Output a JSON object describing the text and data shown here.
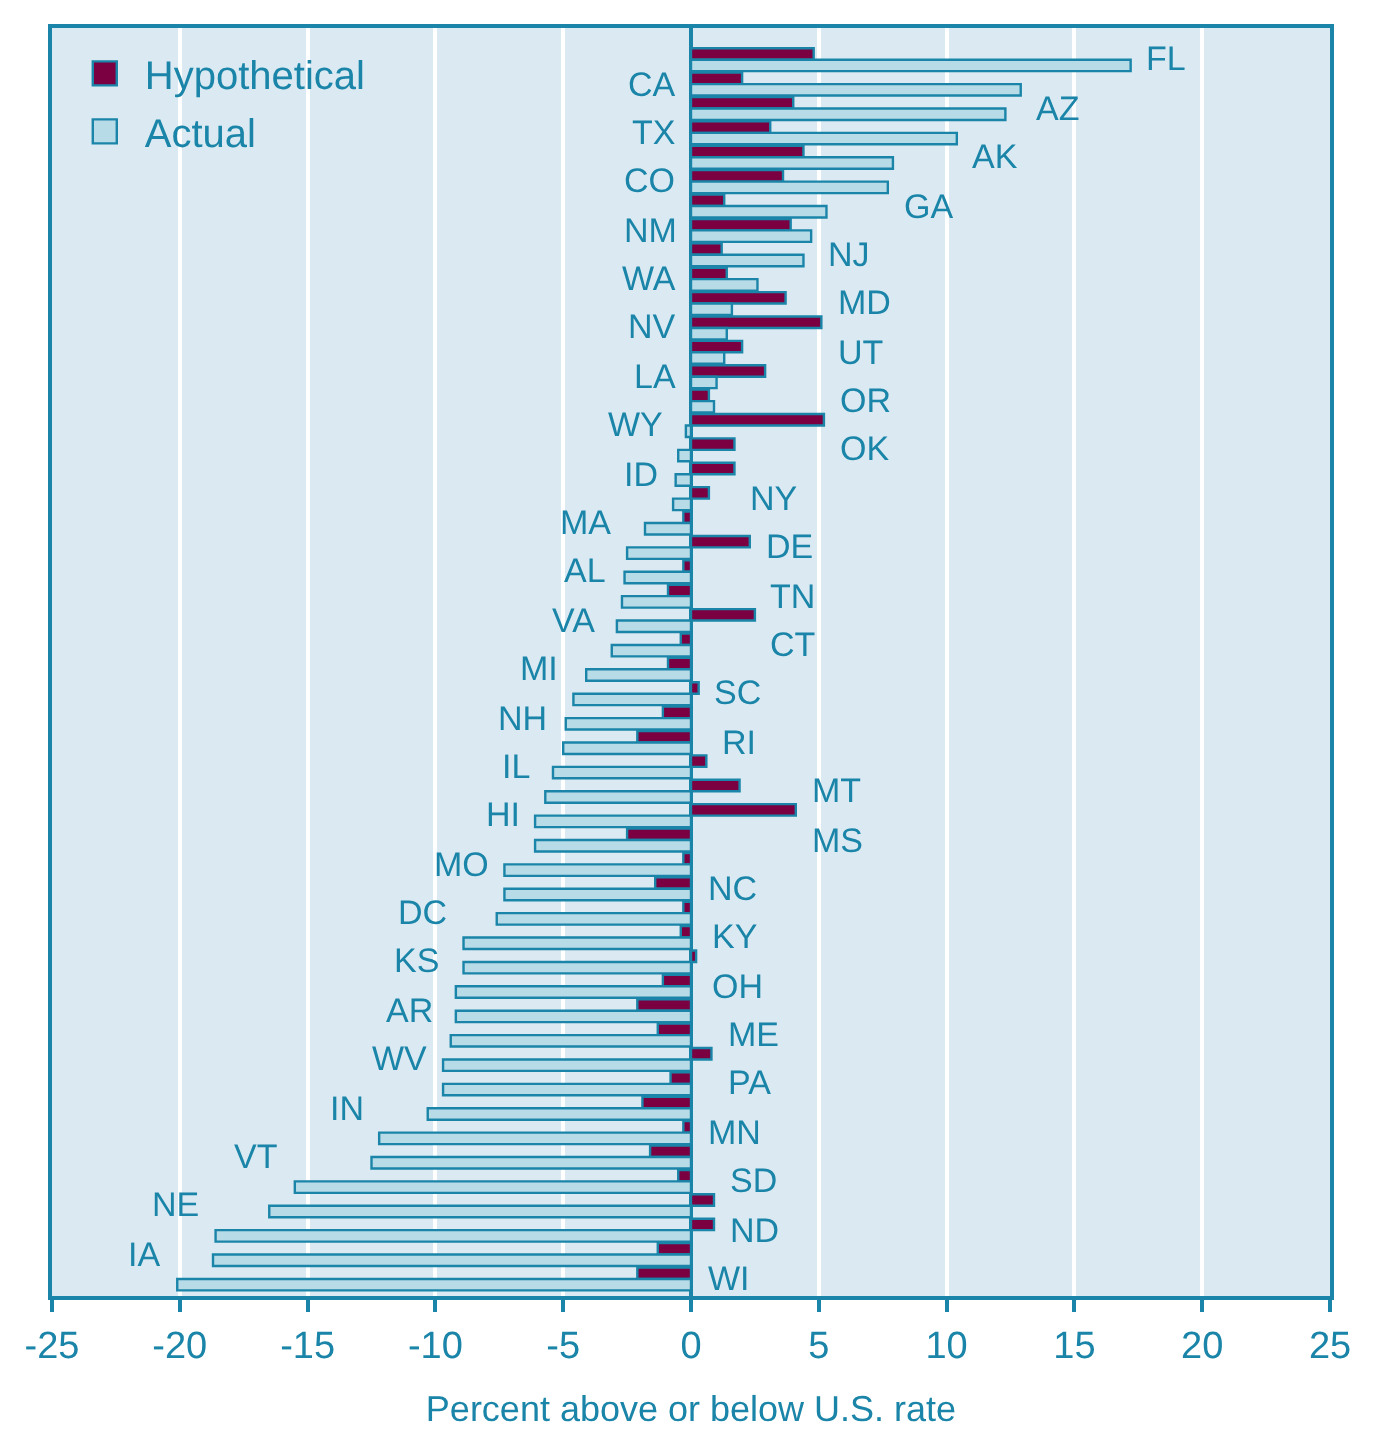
{
  "chart_data": {
    "type": "bar",
    "orientation": "horizontal",
    "xlabel": "Percent above or below U.S. rate",
    "categories": [
      "FL",
      "CA",
      "AZ",
      "TX",
      "AK",
      "CO",
      "GA",
      "NM",
      "NJ",
      "WA",
      "MD",
      "NV",
      "UT",
      "LA",
      "OR",
      "WY",
      "OK",
      "ID",
      "NY",
      "MA",
      "DE",
      "AL",
      "TN",
      "VA",
      "CT",
      "MI",
      "SC",
      "NH",
      "RI",
      "IL",
      "MT",
      "HI",
      "MS",
      "MO",
      "NC",
      "DC",
      "KY",
      "KS",
      "OH",
      "AR",
      "ME",
      "WV",
      "PA",
      "IN",
      "MN",
      "VT",
      "SD",
      "NE",
      "ND",
      "IA",
      "WI"
    ],
    "series": [
      {
        "name": "Hypothetical",
        "color": "#7a0042",
        "values": [
          4.8,
          2.0,
          4.0,
          3.1,
          4.4,
          3.6,
          1.3,
          3.9,
          1.2,
          1.4,
          3.7,
          5.1,
          2.0,
          2.9,
          0.7,
          5.2,
          1.7,
          1.7,
          0.7,
          -0.3,
          2.3,
          -0.3,
          -0.9,
          2.5,
          -0.4,
          -0.9,
          0.3,
          -1.1,
          -2.1,
          0.6,
          1.9,
          4.1,
          -2.5,
          -0.3,
          -1.4,
          -0.3,
          -0.4,
          0.2,
          -1.1,
          -2.1,
          -1.3,
          0.8,
          -0.8,
          -1.9,
          -0.3,
          -1.6,
          -0.5,
          0.9,
          0.9,
          -1.3,
          -2.1
        ]
      },
      {
        "name": "Actual",
        "color": "#b8dbe8",
        "values": [
          17.2,
          12.9,
          12.3,
          10.4,
          7.9,
          7.7,
          5.3,
          4.7,
          4.4,
          2.6,
          1.6,
          1.4,
          1.3,
          1.0,
          0.9,
          -0.2,
          -0.5,
          -0.6,
          -0.7,
          -1.8,
          -2.5,
          -2.6,
          -2.7,
          -2.9,
          -3.1,
          -4.1,
          -4.6,
          -4.9,
          -5.0,
          -5.4,
          -5.7,
          -6.1,
          -6.1,
          -7.3,
          -7.3,
          -7.6,
          -8.9,
          -8.9,
          -9.2,
          -9.2,
          -9.4,
          -9.7,
          -9.7,
          -10.3,
          -12.2,
          -12.5,
          -15.5,
          -16.5,
          -18.6,
          -18.7,
          -20.1
        ]
      }
    ],
    "xlim": [
      -25,
      25
    ],
    "xticks": [
      -25,
      -20,
      -15,
      -10,
      -5,
      0,
      5,
      10,
      15,
      20,
      25
    ],
    "grid": "x",
    "legend": "top left"
  }
}
